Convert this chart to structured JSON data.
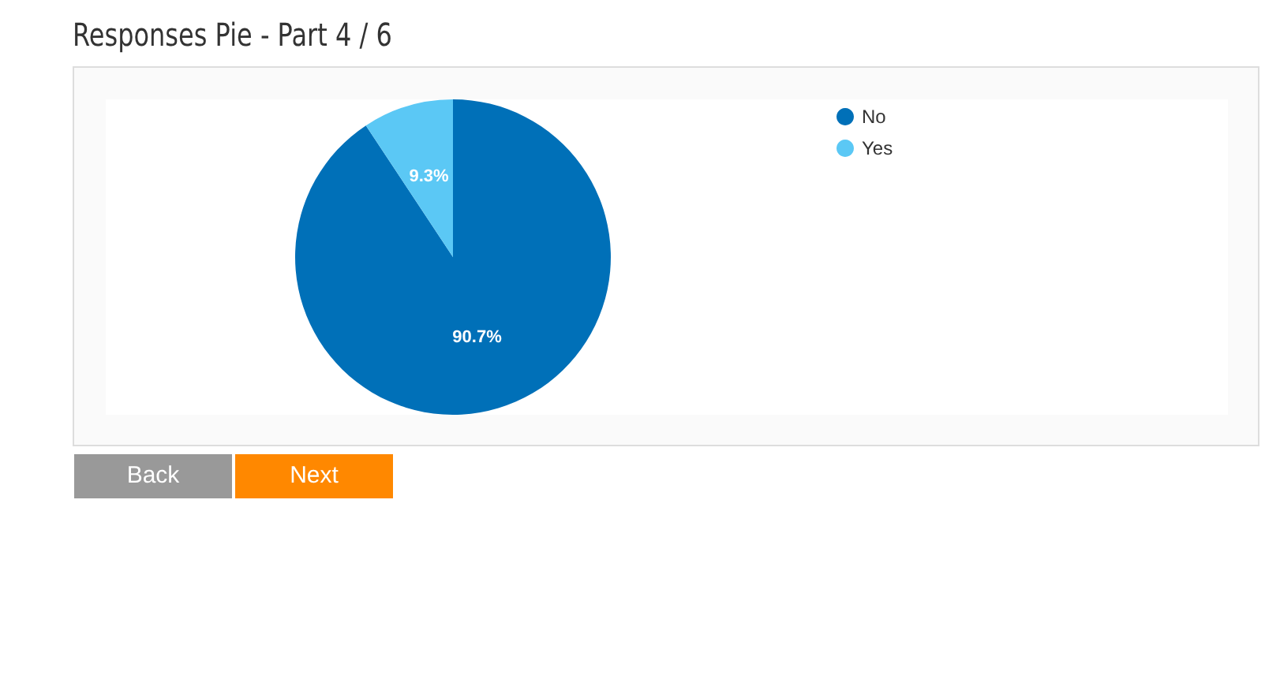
{
  "chart_data": {
    "type": "pie",
    "title": "Responses Pie - Part 4 / 6",
    "categories": [
      "No",
      "Yes"
    ],
    "values": [
      90.7,
      9.3
    ],
    "colors": [
      "#0070b8",
      "#5bc8f5"
    ],
    "value_labels": [
      "90.7%",
      "9.3%"
    ],
    "legend": "top right",
    "annotations": [
      "Back",
      "Next"
    ]
  }
}
